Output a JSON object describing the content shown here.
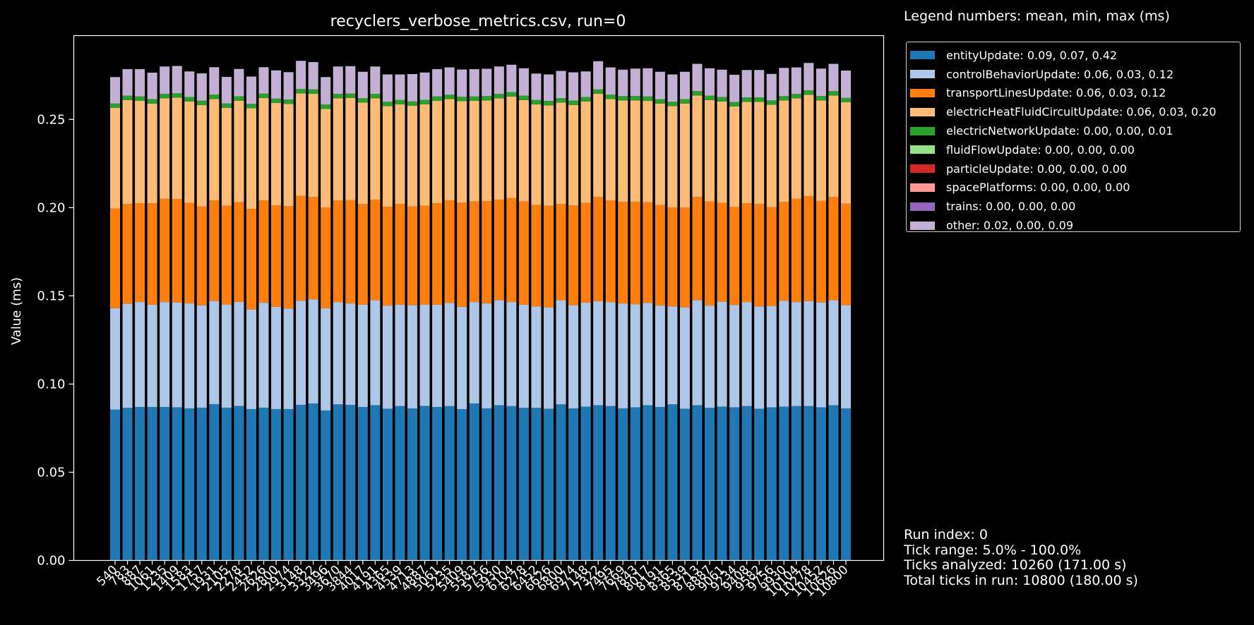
{
  "chart_data": {
    "type": "bar",
    "stacked": true,
    "title": "recyclers_verbose_metrics.csv, run=0",
    "ylabel": "Value (ms)",
    "xlabel": "",
    "ylim": [
      0,
      0.2975
    ],
    "yticks": [
      "0.00",
      "0.05",
      "0.10",
      "0.15",
      "0.20",
      "0.25"
    ],
    "legend_title": "Legend numbers: mean, min, max (ms)",
    "legend_position": "right-top, outside plot",
    "grid": false,
    "categories": [
      "540",
      "783",
      "887",
      "1061",
      "1235",
      "1409",
      "1583",
      "1757",
      "1931",
      "2105",
      "2278",
      "2452",
      "2626",
      "2800",
      "2974",
      "3148",
      "3322",
      "3496",
      "3670",
      "3844",
      "4017",
      "4191",
      "4365",
      "4539",
      "4713",
      "4887",
      "5061",
      "5235",
      "5409",
      "5583",
      "5756",
      "5930",
      "6104",
      "6278",
      "6452",
      "6626",
      "6800",
      "6974",
      "7148",
      "7322",
      "7495",
      "7669",
      "7843",
      "8017",
      "8191",
      "8365",
      "8539",
      "8713",
      "8887",
      "9061",
      "9234",
      "9408",
      "9582",
      "9756",
      "9930",
      "10104",
      "10278",
      "10452",
      "10626",
      "10800"
    ],
    "series": [
      {
        "name": "entityUpdate",
        "label": "entityUpdate: 0.09, 0.07, 0.42",
        "color": "#1f77b4",
        "values": [
          0.0855,
          0.0865,
          0.087,
          0.087,
          0.087,
          0.0868,
          0.0862,
          0.0866,
          0.0886,
          0.0866,
          0.0876,
          0.0858,
          0.0866,
          0.0858,
          0.0858,
          0.0882,
          0.089,
          0.085,
          0.0885,
          0.0882,
          0.087,
          0.088,
          0.086,
          0.0875,
          0.0862,
          0.0876,
          0.087,
          0.0875,
          0.0858,
          0.089,
          0.0862,
          0.088,
          0.0875,
          0.0865,
          0.0865,
          0.086,
          0.0885,
          0.0862,
          0.0872,
          0.088,
          0.0875,
          0.0862,
          0.0868,
          0.088,
          0.087,
          0.0885,
          0.086,
          0.088,
          0.0865,
          0.0872,
          0.0868,
          0.0875,
          0.086,
          0.0868,
          0.0872,
          0.0875,
          0.0875,
          0.0868,
          0.088,
          0.0862
        ]
      },
      {
        "name": "controlBehaviorUpdate",
        "label": "controlBehaviorUpdate: 0.06, 0.03, 0.12",
        "color": "#aec7e8",
        "values": [
          0.0575,
          0.059,
          0.0595,
          0.058,
          0.0595,
          0.0595,
          0.0595,
          0.058,
          0.0585,
          0.0585,
          0.059,
          0.0565,
          0.0595,
          0.058,
          0.057,
          0.059,
          0.059,
          0.058,
          0.058,
          0.0575,
          0.058,
          0.0595,
          0.0585,
          0.0575,
          0.0585,
          0.0575,
          0.058,
          0.0585,
          0.058,
          0.0575,
          0.0595,
          0.0595,
          0.059,
          0.0585,
          0.0575,
          0.0575,
          0.059,
          0.0585,
          0.059,
          0.059,
          0.059,
          0.0595,
          0.0585,
          0.058,
          0.0575,
          0.0555,
          0.0575,
          0.0595,
          0.058,
          0.0595,
          0.058,
          0.059,
          0.058,
          0.0575,
          0.06,
          0.059,
          0.0595,
          0.0595,
          0.0595,
          0.0585
        ]
      },
      {
        "name": "transportLinesUpdate",
        "label": "transportLinesUpdate: 0.06, 0.03, 0.12",
        "color": "#ff7f0e",
        "values": [
          0.0565,
          0.0565,
          0.056,
          0.0575,
          0.0585,
          0.0585,
          0.057,
          0.056,
          0.057,
          0.056,
          0.0565,
          0.057,
          0.058,
          0.0575,
          0.058,
          0.0595,
          0.058,
          0.057,
          0.0575,
          0.0585,
          0.057,
          0.057,
          0.056,
          0.057,
          0.056,
          0.056,
          0.0575,
          0.058,
          0.059,
          0.057,
          0.058,
          0.057,
          0.059,
          0.0585,
          0.0575,
          0.0575,
          0.0545,
          0.0565,
          0.0565,
          0.059,
          0.0575,
          0.0575,
          0.058,
          0.057,
          0.057,
          0.056,
          0.0565,
          0.0585,
          0.059,
          0.056,
          0.0555,
          0.056,
          0.058,
          0.056,
          0.056,
          0.0585,
          0.0595,
          0.0575,
          0.0585,
          0.0575
        ]
      },
      {
        "name": "electricHeatFluidCircuitUpdate",
        "label": "electricHeatFluidCircuitUpdate: 0.06, 0.03, 0.20",
        "color": "#ffbb78",
        "values": [
          0.057,
          0.059,
          0.058,
          0.0565,
          0.057,
          0.0575,
          0.0575,
          0.0575,
          0.0575,
          0.0555,
          0.0575,
          0.057,
          0.058,
          0.058,
          0.058,
          0.058,
          0.0585,
          0.056,
          0.058,
          0.058,
          0.0575,
          0.0575,
          0.057,
          0.0565,
          0.057,
          0.0575,
          0.058,
          0.0575,
          0.0575,
          0.057,
          0.057,
          0.0575,
          0.0575,
          0.0575,
          0.057,
          0.057,
          0.0575,
          0.057,
          0.0575,
          0.0585,
          0.0575,
          0.0575,
          0.0575,
          0.0575,
          0.0575,
          0.0575,
          0.059,
          0.0575,
          0.0575,
          0.0575,
          0.057,
          0.0575,
          0.058,
          0.058,
          0.0575,
          0.057,
          0.0575,
          0.057,
          0.0575,
          0.0575
        ]
      },
      {
        "name": "electricNetworkUpdate",
        "label": "electricNetworkUpdate: 0.00, 0.00, 0.01",
        "color": "#2ca02c",
        "values": [
          0.0025,
          0.0025,
          0.0025,
          0.0025,
          0.0025,
          0.0025,
          0.0025,
          0.0025,
          0.0025,
          0.0025,
          0.0025,
          0.0025,
          0.0025,
          0.0025,
          0.0025,
          0.0025,
          0.0025,
          0.0025,
          0.0025,
          0.0025,
          0.0025,
          0.0025,
          0.0025,
          0.0025,
          0.0025,
          0.0025,
          0.0025,
          0.0025,
          0.0025,
          0.0025,
          0.0025,
          0.0025,
          0.0025,
          0.0025,
          0.0025,
          0.0025,
          0.0025,
          0.0025,
          0.0025,
          0.0025,
          0.0025,
          0.0025,
          0.0025,
          0.0025,
          0.0025,
          0.0025,
          0.0025,
          0.0025,
          0.0025,
          0.0025,
          0.0025,
          0.0025,
          0.0025,
          0.0025,
          0.0025,
          0.0025,
          0.0025,
          0.0025,
          0.0025,
          0.0025
        ]
      },
      {
        "name": "fluidFlowUpdate",
        "label": "fluidFlowUpdate: 0.00, 0.00, 0.00",
        "color": "#98df8a",
        "values": [
          0,
          0,
          0,
          0,
          0,
          0,
          0,
          0,
          0,
          0,
          0,
          0,
          0,
          0,
          0,
          0,
          0,
          0,
          0,
          0,
          0,
          0,
          0,
          0,
          0,
          0,
          0,
          0,
          0,
          0,
          0,
          0,
          0,
          0,
          0,
          0,
          0,
          0,
          0,
          0,
          0,
          0,
          0,
          0,
          0,
          0,
          0,
          0,
          0,
          0,
          0,
          0,
          0,
          0,
          0,
          0,
          0,
          0,
          0,
          0
        ]
      },
      {
        "name": "particleUpdate",
        "label": "particleUpdate: 0.00, 0.00, 0.00",
        "color": "#d62728",
        "values": [
          0,
          0,
          0,
          0,
          0,
          0,
          0,
          0,
          0,
          0,
          0,
          0,
          0,
          0,
          0,
          0,
          0,
          0,
          0,
          0,
          0,
          0,
          0,
          0,
          0,
          0,
          0,
          0,
          0,
          0,
          0,
          0,
          0,
          0,
          0,
          0,
          0,
          0,
          0,
          0,
          0,
          0,
          0,
          0,
          0,
          0,
          0,
          0,
          0,
          0,
          0,
          0,
          0,
          0,
          0,
          0,
          0,
          0,
          0,
          0
        ]
      },
      {
        "name": "spacePlatforms",
        "label": "spacePlatforms: 0.00, 0.00, 0.00",
        "color": "#ff9896",
        "values": [
          0,
          0,
          0,
          0,
          0,
          0,
          0,
          0,
          0,
          0,
          0,
          0,
          0,
          0,
          0,
          0,
          0,
          0,
          0,
          0,
          0,
          0,
          0,
          0,
          0,
          0,
          0,
          0,
          0,
          0,
          0,
          0,
          0,
          0,
          0,
          0,
          0,
          0,
          0,
          0,
          0,
          0,
          0,
          0,
          0,
          0,
          0,
          0,
          0,
          0,
          0,
          0,
          0,
          0,
          0,
          0,
          0,
          0,
          0,
          0
        ]
      },
      {
        "name": "trains",
        "label": "trains: 0.00, 0.00, 0.00",
        "color": "#9467bd",
        "values": [
          0,
          0,
          0,
          0,
          0,
          0,
          0,
          0,
          0,
          0,
          0,
          0,
          0,
          0,
          0,
          0,
          0,
          0,
          0,
          0,
          0,
          0,
          0,
          0,
          0,
          0,
          0,
          0,
          0,
          0,
          0,
          0,
          0,
          0,
          0,
          0,
          0,
          0,
          0,
          0,
          0,
          0,
          0,
          0,
          0,
          0,
          0,
          0,
          0,
          0,
          0,
          0,
          0,
          0,
          0,
          0,
          0,
          0,
          0,
          0
        ]
      },
      {
        "name": "other",
        "label": "other: 0.02, 0.00, 0.09",
        "color": "#c5b0d5",
        "values": [
          0.015,
          0.015,
          0.0155,
          0.015,
          0.0155,
          0.0155,
          0.0145,
          0.0155,
          0.0155,
          0.015,
          0.0155,
          0.0155,
          0.015,
          0.016,
          0.0155,
          0.016,
          0.0155,
          0.0155,
          0.0155,
          0.0155,
          0.015,
          0.0155,
          0.0155,
          0.0145,
          0.0155,
          0.0155,
          0.0155,
          0.0155,
          0.0155,
          0.0155,
          0.0155,
          0.0155,
          0.0155,
          0.0155,
          0.015,
          0.015,
          0.0155,
          0.016,
          0.0145,
          0.016,
          0.0155,
          0.015,
          0.0155,
          0.016,
          0.0155,
          0.0155,
          0.0155,
          0.0155,
          0.0155,
          0.0155,
          0.0155,
          0.0155,
          0.0155,
          0.015,
          0.016,
          0.015,
          0.0155,
          0.0155,
          0.0155,
          0.0155
        ]
      }
    ]
  },
  "run_info": {
    "run_index": "Run index: 0",
    "tick_range": "Tick range: 5.0% - 100.0%",
    "ticks_analyzed": "Ticks analyzed: 10260 (171.00 s)",
    "total_ticks": "Total ticks in run: 10800 (180.00 s)"
  }
}
